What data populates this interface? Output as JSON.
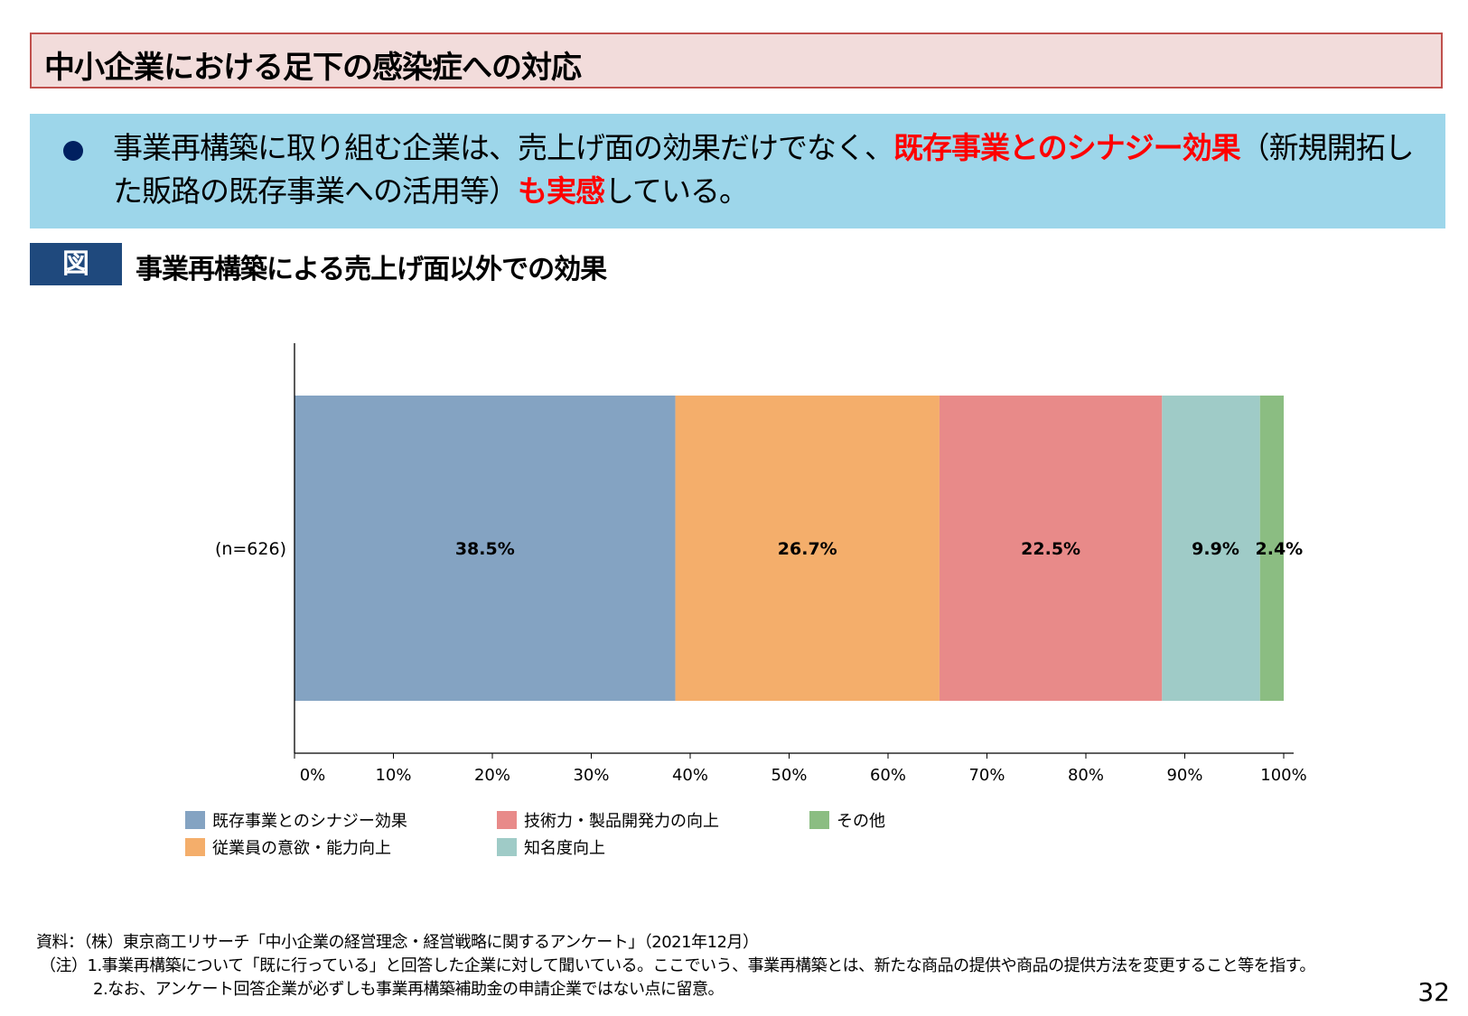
{
  "header": {
    "title": "中小企業における足下の感染症への対応"
  },
  "summary": {
    "part1": "事業再構築に取り組む企業は、売上げ面の効果だけでなく、",
    "highlight1": "既存事業とのシナジー効果",
    "part2": "（新規開拓した販路の既存事業への活用等）",
    "highlight2": "も実感",
    "part3": "している。"
  },
  "figure": {
    "label": "図",
    "title": "事業再構築による売上げ面以外での効果"
  },
  "chart_data": {
    "type": "bar",
    "orientation": "horizontal-stacked-100",
    "categories": [
      "(n=626)"
    ],
    "series": [
      {
        "name": "既存事業とのシナジー効果",
        "values": [
          38.5
        ],
        "label": "38.5%",
        "color": "#84a3c2"
      },
      {
        "name": "従業員の意欲・能力向上",
        "values": [
          26.7
        ],
        "label": "26.7%",
        "color": "#f4ae6b"
      },
      {
        "name": "技術力・製品開発力の向上",
        "values": [
          22.5
        ],
        "label": "22.5%",
        "color": "#e88a89"
      },
      {
        "name": "知名度向上",
        "values": [
          9.9
        ],
        "label": "9.9%",
        "color": "#9fcbc7"
      },
      {
        "name": "その他",
        "values": [
          2.4
        ],
        "label": "2.4%",
        "color": "#8bbd82"
      }
    ],
    "xlim": [
      0,
      100
    ],
    "xticks": [
      "0%",
      "10%",
      "20%",
      "30%",
      "40%",
      "50%",
      "60%",
      "70%",
      "80%",
      "90%",
      "100%"
    ],
    "legend_position": "bottom",
    "grid": false
  },
  "notes": {
    "source": "資料：（株）東京商工リサーチ「中小企業の経営理念・経営戦略に関するアンケート」（2021年12月）",
    "note1": "（注）1.事業再構築について「既に行っている」と回答した企業に対して聞いている。ここでいう、事業再構築とは、新たな商品の提供や商品の提供方法を変更すること等を指す。",
    "note2": "2.なお、アンケート回答企業が必ずしも事業再構築補助金の申請企業ではない点に留意。"
  },
  "page_number": "32"
}
